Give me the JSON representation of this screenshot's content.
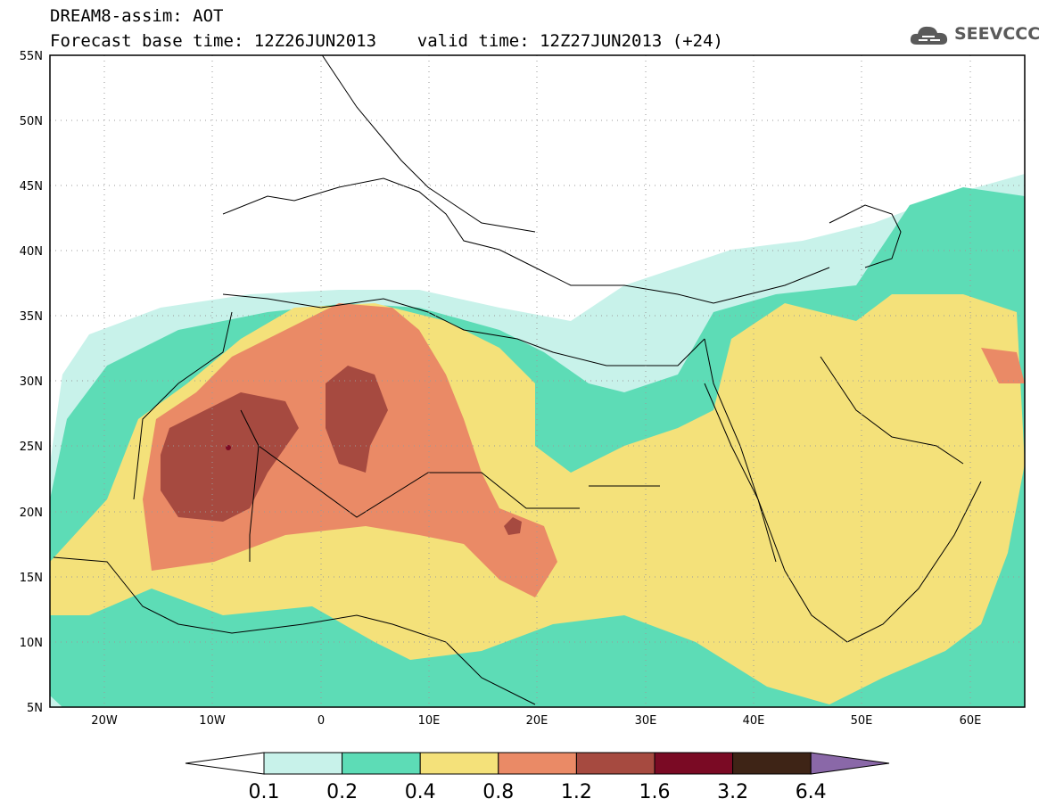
{
  "title": {
    "line1": "DREAM8-assim: AOT",
    "line2": "Forecast base time: 12Z26JUN2013    valid time: 12Z27JUN2013 (+24)"
  },
  "logo": {
    "text": "SEEVCCC",
    "icon": "cloud-icon"
  },
  "map": {
    "lat_labels": [
      "55N",
      "50N",
      "45N",
      "40N",
      "35N",
      "30N",
      "25N",
      "20N",
      "15N",
      "10N",
      "5N"
    ],
    "lon_labels": [
      "20W",
      "10W",
      "0",
      "10E",
      "20E",
      "30E",
      "40E",
      "50E",
      "60E"
    ],
    "lon_range": [
      -25,
      65
    ],
    "lat_range": [
      5,
      55
    ]
  },
  "colorbar": {
    "labels": [
      "0.1",
      "0.2",
      "0.4",
      "0.8",
      "1.2",
      "1.6",
      "3.2",
      "6.4"
    ],
    "colors": [
      "#c8f2ea",
      "#5ddcb6",
      "#f4e17a",
      "#ea8a66",
      "#a64a40",
      "#7a0a24",
      "#3e2416",
      "#8a68a8"
    ],
    "low_color": "#ffffff"
  }
}
